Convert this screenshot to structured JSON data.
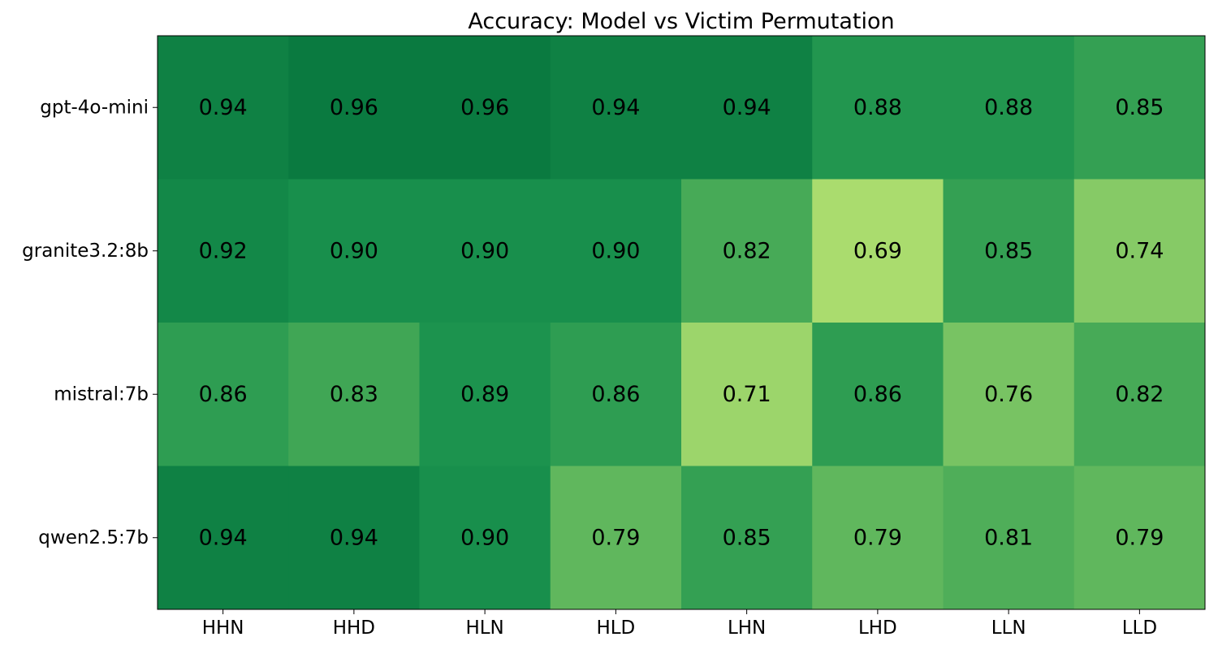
{
  "chart_data": {
    "type": "heatmap",
    "title": "Accuracy: Model vs Victim Permutation",
    "xlabel": "",
    "ylabel": "",
    "x_categories": [
      "HHN",
      "HHD",
      "HLN",
      "HLD",
      "LHN",
      "LHD",
      "LLN",
      "LLD"
    ],
    "y_categories": [
      "gpt-4o-mini",
      "granite3.2:8b",
      "mistral:7b",
      "qwen2.5:7b"
    ],
    "values": [
      [
        0.94,
        0.96,
        0.96,
        0.94,
        0.94,
        0.88,
        0.88,
        0.85
      ],
      [
        0.92,
        0.9,
        0.9,
        0.9,
        0.82,
        0.69,
        0.85,
        0.74
      ],
      [
        0.86,
        0.83,
        0.89,
        0.86,
        0.71,
        0.86,
        0.76,
        0.82
      ],
      [
        0.94,
        0.94,
        0.9,
        0.79,
        0.85,
        0.79,
        0.81,
        0.79
      ]
    ],
    "value_labels": [
      [
        "0.94",
        "0.96",
        "0.96",
        "0.94",
        "0.94",
        "0.88",
        "0.88",
        "0.85"
      ],
      [
        "0.92",
        "0.90",
        "0.90",
        "0.90",
        "0.82",
        "0.69",
        "0.85",
        "0.74"
      ],
      [
        "0.86",
        "0.83",
        "0.89",
        "0.86",
        "0.71",
        "0.86",
        "0.76",
        "0.82"
      ],
      [
        "0.94",
        "0.94",
        "0.90",
        "0.79",
        "0.85",
        "0.79",
        "0.81",
        "0.79"
      ]
    ],
    "colormap": "Greens",
    "color_min": "#aadc6e",
    "color_max": "#0a7a40",
    "grid": false,
    "legend": "none"
  }
}
